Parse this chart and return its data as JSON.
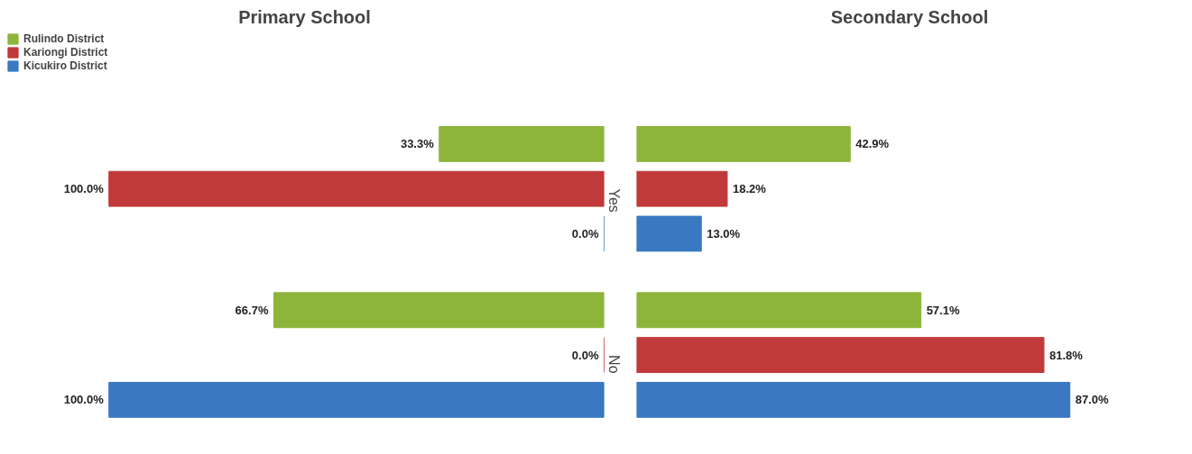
{
  "chart_data": [
    {
      "type": "bar",
      "orientation": "horizontal",
      "title": "Primary School",
      "categories": [
        "Yes",
        "No"
      ],
      "tick_labels": "y",
      "legend": "top left",
      "grid": false,
      "series": [
        {
          "name": "Rulindo District",
          "color": "#8db53a",
          "values": [
            33.3,
            66.7
          ],
          "value_labels": [
            "33.3%",
            "66.7%"
          ]
        },
        {
          "name": "Kariongi District",
          "color": "#c0393b",
          "values": [
            100.0,
            0.0
          ],
          "value_labels": [
            "100.0%",
            "0.0%"
          ]
        },
        {
          "name": "Kicukiro District",
          "color": "#3a78c2",
          "values": [
            0.0,
            100.0
          ],
          "value_labels": [
            "0.0%",
            "100.0%"
          ]
        }
      ]
    },
    {
      "type": "bar",
      "orientation": "horizontal",
      "title": "Secondary School",
      "categories": [
        null,
        null
      ],
      "tick_labels": false,
      "legend": false,
      "grid": false,
      "series": [
        {
          "color": "#8db53a",
          "values": [
            42.9,
            57.1
          ],
          "value_labels": [
            "42.9%",
            "57.1%"
          ]
        },
        {
          "color": "#c0393b",
          "values": [
            18.2,
            81.8
          ],
          "value_labels": [
            "18.2%",
            "81.8%"
          ]
        },
        {
          "color": "#3a78c2",
          "values": [
            13.0,
            87.0
          ],
          "value_labels": [
            "13.0%",
            "87.0%"
          ]
        }
      ]
    }
  ]
}
